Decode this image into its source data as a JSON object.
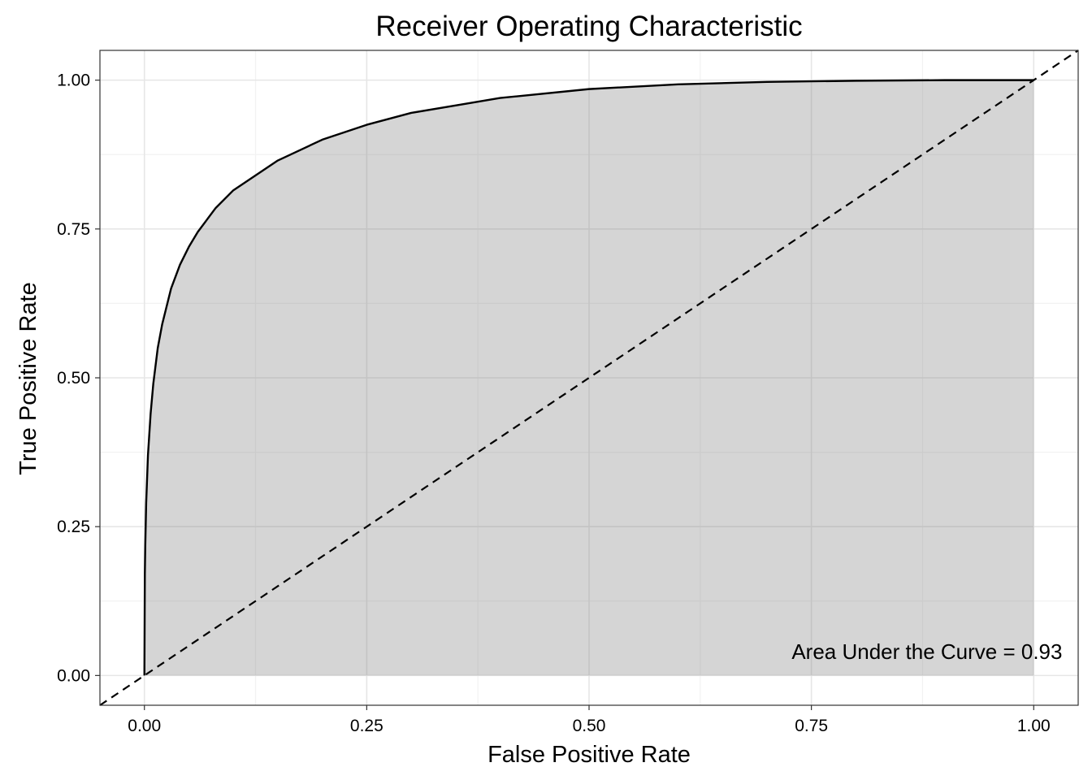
{
  "chart_data": {
    "type": "area",
    "title": "Receiver Operating Characteristic",
    "xlabel": "False Positive Rate",
    "ylabel": "True Positive Rate",
    "xlim": [
      -0.05,
      1.05
    ],
    "ylim": [
      -0.05,
      1.05
    ],
    "x_ticks": [
      "0.00",
      "0.25",
      "0.50",
      "0.75",
      "1.00"
    ],
    "y_ticks": [
      "0.00",
      "0.25",
      "0.50",
      "0.75",
      "1.00"
    ],
    "grid": true,
    "series": [
      {
        "x": [
          0,
          0.0005,
          0.001,
          0.002,
          0.004,
          0.007,
          0.01,
          0.015,
          0.02,
          0.03,
          0.04,
          0.05,
          0.06,
          0.08,
          0.1,
          0.125,
          0.15,
          0.2,
          0.25,
          0.3,
          0.4,
          0.5,
          0.6,
          0.7,
          0.8,
          0.9,
          1.0
        ],
        "y": [
          0,
          0.17,
          0.22,
          0.29,
          0.37,
          0.44,
          0.49,
          0.55,
          0.59,
          0.65,
          0.69,
          0.72,
          0.745,
          0.785,
          0.815,
          0.84,
          0.865,
          0.9,
          0.925,
          0.945,
          0.97,
          0.985,
          0.993,
          0.997,
          0.999,
          1.0,
          1.0
        ]
      },
      {
        "x": [
          -0.05,
          1.05
        ],
        "y": [
          -0.05,
          1.05
        ]
      }
    ],
    "annotation": "Area Under the Curve = 0.93",
    "annotation_position": [
      0.88,
      0.04
    ]
  }
}
